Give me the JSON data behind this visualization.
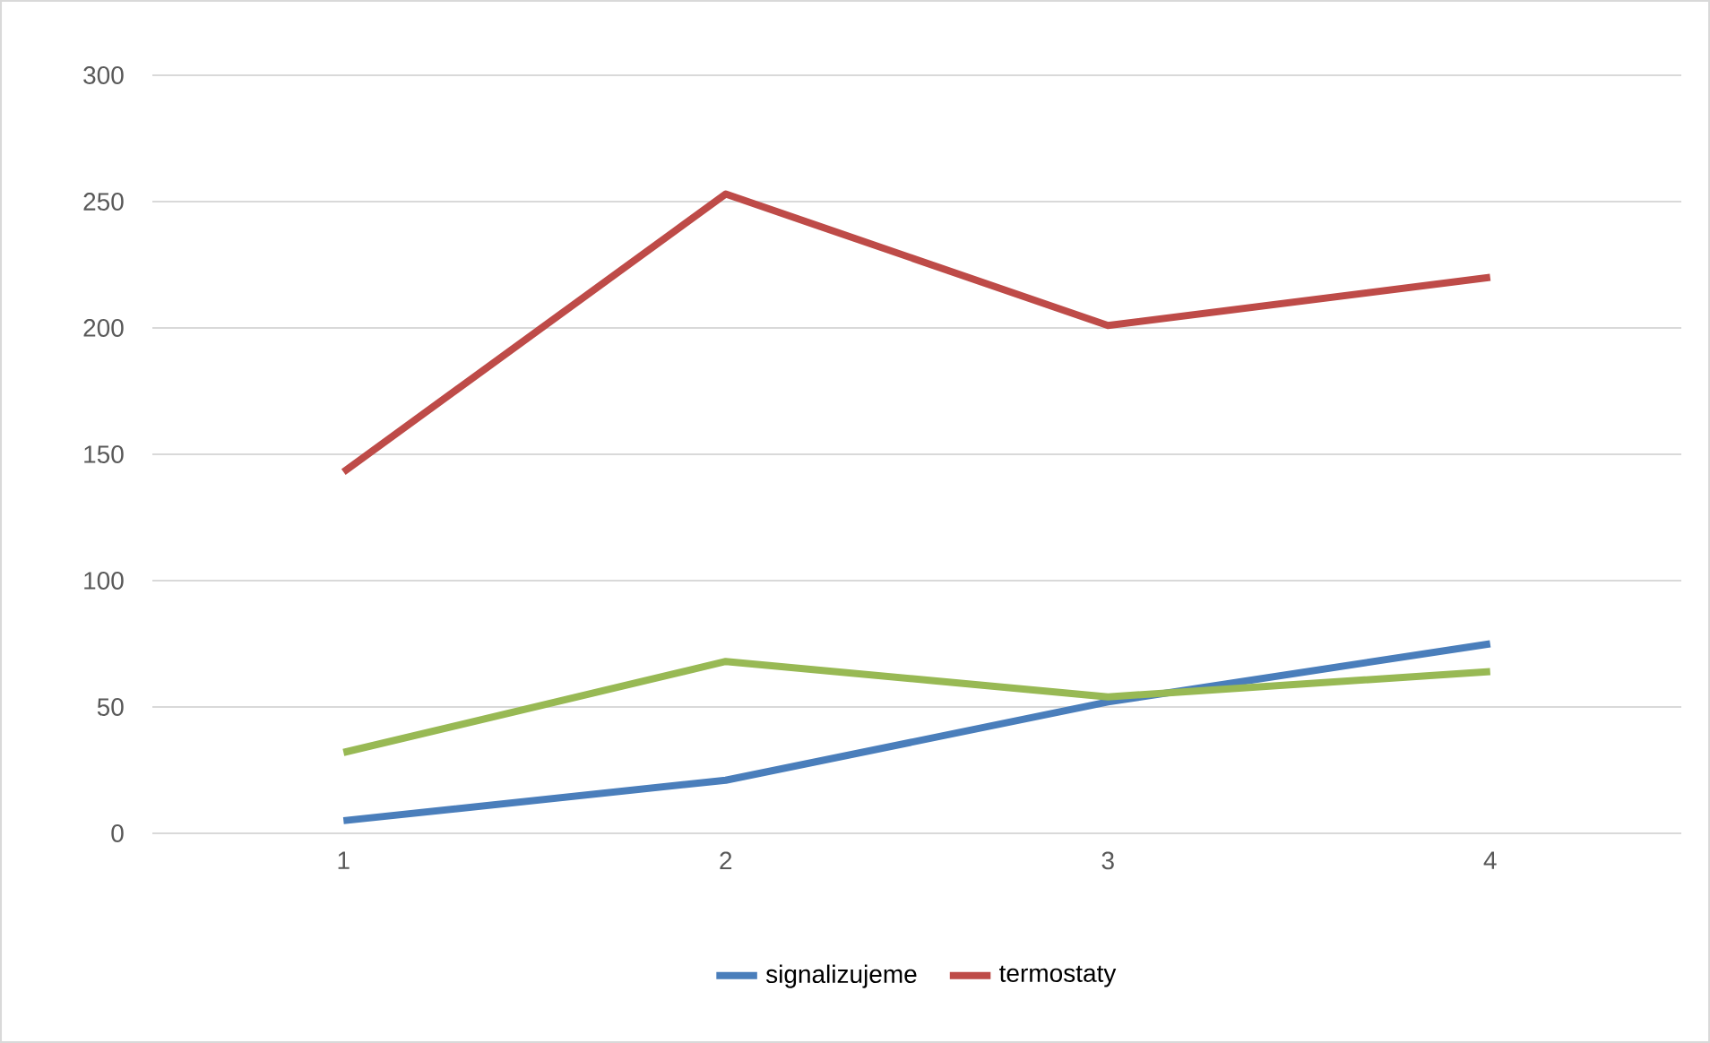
{
  "chart_data": {
    "type": "line",
    "categories": [
      "1",
      "2",
      "3",
      "4"
    ],
    "series": [
      {
        "name": "signalizujeme",
        "color": "#4a7ebb",
        "values": [
          5,
          21,
          52,
          75
        ]
      },
      {
        "name": "termostaty",
        "color": "#be4b48",
        "values": [
          143,
          253,
          201,
          220
        ]
      },
      {
        "color": "#98b954",
        "values": [
          32,
          68,
          54,
          64
        ]
      }
    ],
    "ylim": [
      0,
      300
    ],
    "yticks": [
      0,
      50,
      100,
      150,
      200,
      250,
      300
    ],
    "grid": "y",
    "legend": "bottom",
    "marker": "none",
    "line_style": "solid"
  }
}
